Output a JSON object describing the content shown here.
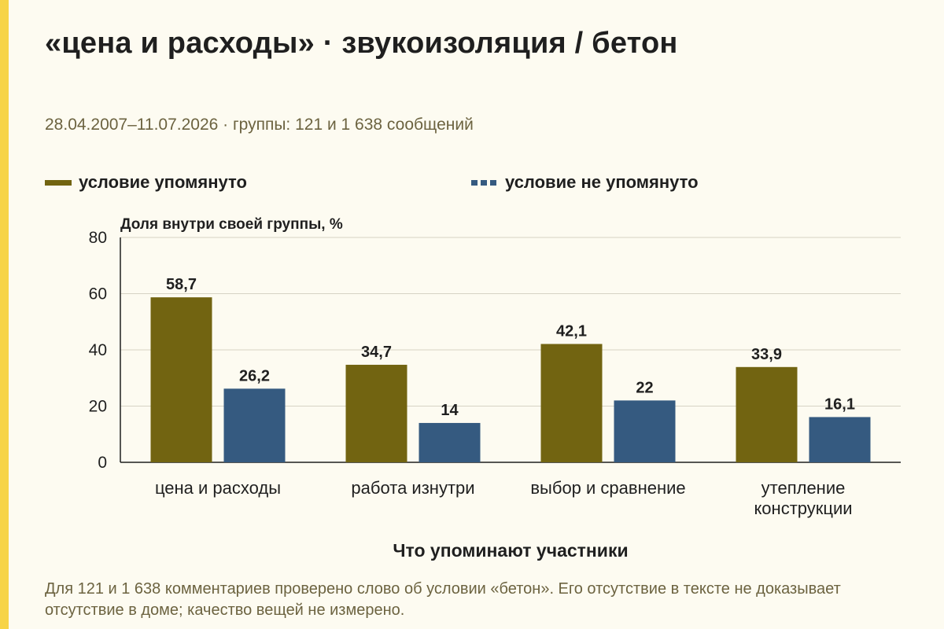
{
  "title": "«цена и расходы» · звукоизоляция / бетон",
  "subtitle": "28.04.2007–11.07.2026 · группы: 121 и 1 638 сообщений",
  "legend": [
    {
      "label": "условие упомянуто",
      "style": "solid"
    },
    {
      "label": "условие не упомянуто",
      "style": "dashed"
    }
  ],
  "footnote": "Для 121 и 1 638 комментариев проверено слово об условии «бетон». Его отсутствие в тексте не доказывает отсутствие в доме; качество вещей не измерено.",
  "colors": {
    "mentioned": "#726411",
    "not_mentioned": "#355a80",
    "accent": "#f7d447",
    "background": "#fdfbf1"
  },
  "chart_data": {
    "type": "bar",
    "ylabel": "Доля внутри своей группы, %",
    "xlabel": "Что упоминают участники",
    "ylim": [
      0,
      80
    ],
    "yticks": [
      0,
      20,
      40,
      60,
      80
    ],
    "grid": true,
    "legend_position": "top",
    "categories": [
      "цена и расходы",
      "работа изнутри",
      "выбор и сравнение",
      "утепление конструкции"
    ],
    "series": [
      {
        "name": "условие упомянуто",
        "values": [
          58.7,
          34.7,
          42.1,
          33.9
        ],
        "labels": [
          "58,7",
          "34,7",
          "42,1",
          "33,9"
        ]
      },
      {
        "name": "условие не упомянуто",
        "values": [
          26.2,
          14,
          22,
          16.1
        ],
        "labels": [
          "26,2",
          "14",
          "22",
          "16,1"
        ]
      }
    ]
  }
}
